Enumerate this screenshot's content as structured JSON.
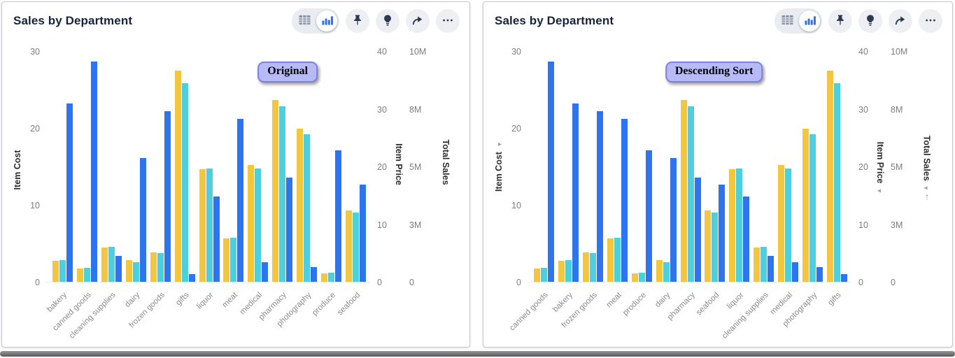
{
  "panels": [
    {
      "title": "Sales by Department",
      "badge": "Original"
    },
    {
      "title": "Sales by Department",
      "badge": "Descending Sort"
    }
  ],
  "toolbar": {
    "icons": [
      "table-view-icon",
      "bar-chart-view-icon",
      "pin-icon",
      "lightbulb-icon",
      "share-icon",
      "ellipsis-icon"
    ],
    "active_view": "bar-chart"
  },
  "colors": {
    "item_price_bar": "#f2c63f",
    "total_sales_bar": "#4ccfdf",
    "item_cost_bar": "#2e74ee",
    "badge_bg": "#b7baf7",
    "badge_border": "#7b80e3",
    "title_text": "#16233b",
    "tick_text": "#7a7d82",
    "x_label_text": "#8b8b8b"
  },
  "chart_data": [
    {
      "type": "bar",
      "title": "Sales by Department",
      "annotation": "Original",
      "gridlines": false,
      "legend": "none",
      "x_label_rotation": -45,
      "categories": [
        "bakery",
        "canned goods",
        "cleaning supplies",
        "dairy",
        "frozen goods",
        "gifts",
        "liquor",
        "meat",
        "medical",
        "pharmacy",
        "photography",
        "produce",
        "seafood"
      ],
      "series": [
        {
          "name": "Item Price",
          "color": "#f2c63f",
          "axis": "right1",
          "axis_max": 40,
          "values": [
            3.6,
            2.3,
            5.9,
            3.7,
            5.1,
            36.6,
            19.5,
            7.5,
            20.3,
            31.5,
            26.6,
            1.5,
            12.4
          ]
        },
        {
          "name": "Total Sales",
          "color": "#4ccfdf",
          "axis": "right2",
          "axis_max": 10,
          "unit": "M",
          "values": [
            0.95,
            0.6,
            1.5,
            0.85,
            1.25,
            8.6,
            4.9,
            1.9,
            4.9,
            7.6,
            6.4,
            0.4,
            3.0
          ]
        },
        {
          "name": "Item Cost",
          "color": "#2e74ee",
          "axis": "left",
          "axis_max": 30,
          "values": [
            23.2,
            28.6,
            3.4,
            16.1,
            22.2,
            1.0,
            11.1,
            21.2,
            2.5,
            13.5,
            1.9,
            17.1,
            12.6
          ]
        }
      ],
      "axes": {
        "left": {
          "title": "Item Cost",
          "range": [
            0,
            30
          ],
          "ticks": [
            "30",
            "20",
            "10",
            "0"
          ],
          "sort_arrow": ""
        },
        "right1": {
          "title": "Item Price",
          "range": [
            0,
            40
          ],
          "ticks": [
            "40",
            "30",
            "20",
            "10",
            "0"
          ],
          "sort_arrow": ""
        },
        "right2": {
          "title": "Total Sales",
          "range": [
            "0",
            "10M"
          ],
          "ticks": [
            "10M",
            "8M",
            "5M",
            "3M",
            "0"
          ],
          "sort_arrow": "",
          "sort_arrow2": ""
        }
      }
    },
    {
      "type": "bar",
      "title": "Sales by Department",
      "annotation": "Descending Sort",
      "gridlines": false,
      "legend": "none",
      "x_label_rotation": -45,
      "sort": "Item Cost descending",
      "categories": [
        "canned goods",
        "bakery",
        "frozen goods",
        "meat",
        "produce",
        "dairy",
        "pharmacy",
        "seafood",
        "liquor",
        "cleaning supplies",
        "medical",
        "photography",
        "gifts"
      ],
      "series": [
        {
          "name": "Item Price",
          "color": "#f2c63f",
          "axis": "right1",
          "axis_max": 40,
          "values": [
            2.3,
            3.6,
            5.1,
            7.5,
            1.5,
            3.7,
            31.5,
            12.4,
            19.5,
            5.9,
            20.3,
            26.6,
            36.6
          ]
        },
        {
          "name": "Total Sales",
          "color": "#4ccfdf",
          "axis": "right2",
          "axis_max": 10,
          "unit": "M",
          "values": [
            0.6,
            0.95,
            1.25,
            1.9,
            0.4,
            0.85,
            7.6,
            3.0,
            4.9,
            1.5,
            4.9,
            6.4,
            8.6
          ]
        },
        {
          "name": "Item Cost",
          "color": "#2e74ee",
          "axis": "left",
          "axis_max": 30,
          "values": [
            28.6,
            23.2,
            22.2,
            21.2,
            17.1,
            16.1,
            13.5,
            12.6,
            11.1,
            3.4,
            2.5,
            1.9,
            1.0
          ]
        }
      ],
      "axes": {
        "left": {
          "title": "Item Cost",
          "range": [
            0,
            30
          ],
          "ticks": [
            "30",
            "20",
            "10",
            "0"
          ],
          "sort_arrow": "▸"
        },
        "right1": {
          "title": "Item Price",
          "range": [
            0,
            40
          ],
          "ticks": [
            "40",
            "30",
            "20",
            "10",
            "0"
          ],
          "sort_arrow": "◂"
        },
        "right2": {
          "title": "Total Sales",
          "range": [
            "0",
            "10M"
          ],
          "ticks": [
            "10M",
            "8M",
            "5M",
            "3M",
            "0"
          ],
          "sort_arrow": "◂",
          "sort_arrow2": "↑"
        }
      }
    }
  ]
}
